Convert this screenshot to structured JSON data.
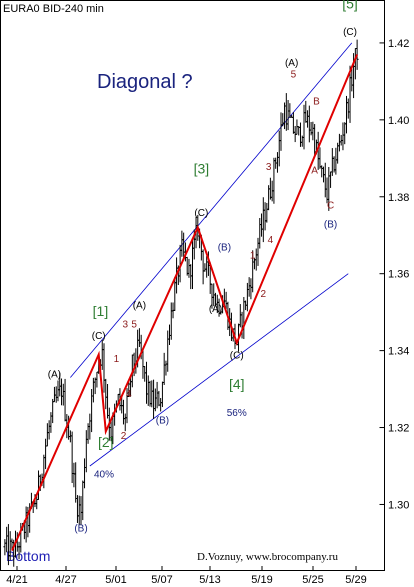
{
  "header": {
    "title": "EURA0 BID-240 min"
  },
  "annotations": {
    "headline": "Diagonal ?",
    "bottom_label": "Bottom",
    "credit": "D.Voznuy,  www.brocompany.ru"
  },
  "chart_data": {
    "type": "candlestick",
    "title": "EURA0 BID-240 min",
    "x_tick_labels": [
      "4/21",
      "4/27",
      "5/01",
      "5/07",
      "5/13",
      "5/19",
      "5/25",
      "5/29"
    ],
    "y_tick_labels": [
      "1.30",
      "1.32",
      "1.34",
      "1.36",
      "1.38",
      "1.40",
      "1.42"
    ],
    "ylim": [
      1.284,
      1.427
    ],
    "n_bars": 200,
    "grid": false,
    "colors": {
      "bars": "#000000",
      "wave_line": "#e00000",
      "channel": "#0000cc"
    },
    "price_path": [
      {
        "i": 0,
        "p": 1.289
      },
      {
        "i": 6,
        "p": 1.288
      },
      {
        "i": 12,
        "p": 1.295
      },
      {
        "i": 18,
        "p": 1.302
      },
      {
        "i": 24,
        "p": 1.318
      },
      {
        "i": 28,
        "p": 1.326
      },
      {
        "i": 32,
        "p": 1.33
      },
      {
        "i": 37,
        "p": 1.316
      },
      {
        "i": 40,
        "p": 1.301
      },
      {
        "i": 43,
        "p": 1.298
      },
      {
        "i": 46,
        "p": 1.318
      },
      {
        "i": 50,
        "p": 1.33
      },
      {
        "i": 53,
        "p": 1.338
      },
      {
        "i": 55,
        "p": 1.339
      },
      {
        "i": 58,
        "p": 1.324
      },
      {
        "i": 60,
        "p": 1.319
      },
      {
        "i": 64,
        "p": 1.327
      },
      {
        "i": 68,
        "p": 1.322
      },
      {
        "i": 72,
        "p": 1.336
      },
      {
        "i": 76,
        "p": 1.341
      },
      {
        "i": 80,
        "p": 1.33
      },
      {
        "i": 84,
        "p": 1.326
      },
      {
        "i": 88,
        "p": 1.328
      },
      {
        "i": 92,
        "p": 1.343
      },
      {
        "i": 96,
        "p": 1.356
      },
      {
        "i": 100,
        "p": 1.366
      },
      {
        "i": 104,
        "p": 1.36
      },
      {
        "i": 109,
        "p": 1.372
      },
      {
        "i": 112,
        "p": 1.363
      },
      {
        "i": 116,
        "p": 1.358
      },
      {
        "i": 120,
        "p": 1.352
      },
      {
        "i": 124,
        "p": 1.353
      },
      {
        "i": 128,
        "p": 1.345
      },
      {
        "i": 131,
        "p": 1.342
      },
      {
        "i": 134,
        "p": 1.349
      },
      {
        "i": 138,
        "p": 1.357
      },
      {
        "i": 142,
        "p": 1.366
      },
      {
        "i": 146,
        "p": 1.374
      },
      {
        "i": 150,
        "p": 1.382
      },
      {
        "i": 154,
        "p": 1.392
      },
      {
        "i": 158,
        "p": 1.403
      },
      {
        "i": 162,
        "p": 1.398
      },
      {
        "i": 166,
        "p": 1.396
      },
      {
        "i": 170,
        "p": 1.4
      },
      {
        "i": 174,
        "p": 1.397
      },
      {
        "i": 178,
        "p": 1.387
      },
      {
        "i": 182,
        "p": 1.381
      },
      {
        "i": 186,
        "p": 1.389
      },
      {
        "i": 190,
        "p": 1.395
      },
      {
        "i": 194,
        "p": 1.405
      },
      {
        "i": 197,
        "p": 1.414
      },
      {
        "i": 199,
        "p": 1.418
      }
    ],
    "wave_path": [
      {
        "i": 4,
        "p": 1.288
      },
      {
        "i": 53,
        "p": 1.339
      },
      {
        "i": 57,
        "p": 1.319
      },
      {
        "i": 109,
        "p": 1.372
      },
      {
        "i": 131,
        "p": 1.342
      },
      {
        "i": 199,
        "p": 1.417
      }
    ],
    "channels": [
      {
        "name": "upper",
        "from": {
          "i": 37,
          "p": 1.333
        },
        "to": {
          "i": 196,
          "p": 1.42
        }
      },
      {
        "name": "lower",
        "from": {
          "i": 48,
          "p": 1.31
        },
        "to": {
          "i": 194,
          "p": 1.36
        }
      }
    ],
    "wave_labels": [
      {
        "text": "(A)",
        "i": 28,
        "p": 1.333,
        "style": "black"
      },
      {
        "text": "(B)",
        "i": 43,
        "p": 1.293,
        "style": "navy"
      },
      {
        "text": "(C)",
        "i": 53,
        "p": 1.343,
        "style": "black"
      },
      {
        "text": "[1]",
        "i": 54,
        "p": 1.349,
        "style": "green"
      },
      {
        "text": "[2]",
        "i": 57,
        "p": 1.315,
        "style": "green"
      },
      {
        "text": "40%",
        "i": 56,
        "p": 1.307,
        "style": "navy"
      },
      {
        "text": "1",
        "i": 63,
        "p": 1.337,
        "style": "red"
      },
      {
        "text": "2",
        "i": 67,
        "p": 1.317,
        "style": "red"
      },
      {
        "text": "3",
        "i": 68,
        "p": 1.346,
        "style": "red"
      },
      {
        "text": "4",
        "i": 70,
        "p": 1.328,
        "style": "red"
      },
      {
        "text": "5",
        "i": 73,
        "p": 1.346,
        "style": "red"
      },
      {
        "text": "(A)",
        "i": 76,
        "p": 1.351,
        "style": "black"
      },
      {
        "text": "(B)",
        "i": 89,
        "p": 1.321,
        "style": "navy"
      },
      {
        "text": "(C)",
        "i": 111,
        "p": 1.375,
        "style": "black"
      },
      {
        "text": "[3]",
        "i": 111,
        "p": 1.386,
        "style": "green"
      },
      {
        "text": "(B)",
        "i": 124,
        "p": 1.366,
        "style": "navy"
      },
      {
        "text": "(A)",
        "i": 119,
        "p": 1.35,
        "style": "black"
      },
      {
        "text": "(C)",
        "i": 131,
        "p": 1.338,
        "style": "black"
      },
      {
        "text": "[4]",
        "i": 131,
        "p": 1.33,
        "style": "green"
      },
      {
        "text": "56%",
        "i": 131,
        "p": 1.323,
        "style": "navy"
      },
      {
        "text": "1",
        "i": 140,
        "p": 1.364,
        "style": "red"
      },
      {
        "text": "2",
        "i": 146,
        "p": 1.354,
        "style": "red"
      },
      {
        "text": "3",
        "i": 149,
        "p": 1.387,
        "style": "red"
      },
      {
        "text": "4",
        "i": 150,
        "p": 1.368,
        "style": "red"
      },
      {
        "text": "(A)",
        "i": 162,
        "p": 1.414,
        "style": "black"
      },
      {
        "text": "5",
        "i": 163,
        "p": 1.411,
        "style": "red"
      },
      {
        "text": "B",
        "i": 176,
        "p": 1.404,
        "style": "red"
      },
      {
        "text": "A",
        "i": 175,
        "p": 1.386,
        "style": "red"
      },
      {
        "text": "C",
        "i": 184,
        "p": 1.377,
        "style": "red"
      },
      {
        "text": "(B)",
        "i": 184,
        "p": 1.372,
        "style": "navy"
      },
      {
        "text": "(C)",
        "i": 195,
        "p": 1.422,
        "style": "black"
      },
      {
        "text": "[5]",
        "i": 195,
        "p": 1.429,
        "style": "green"
      }
    ]
  }
}
